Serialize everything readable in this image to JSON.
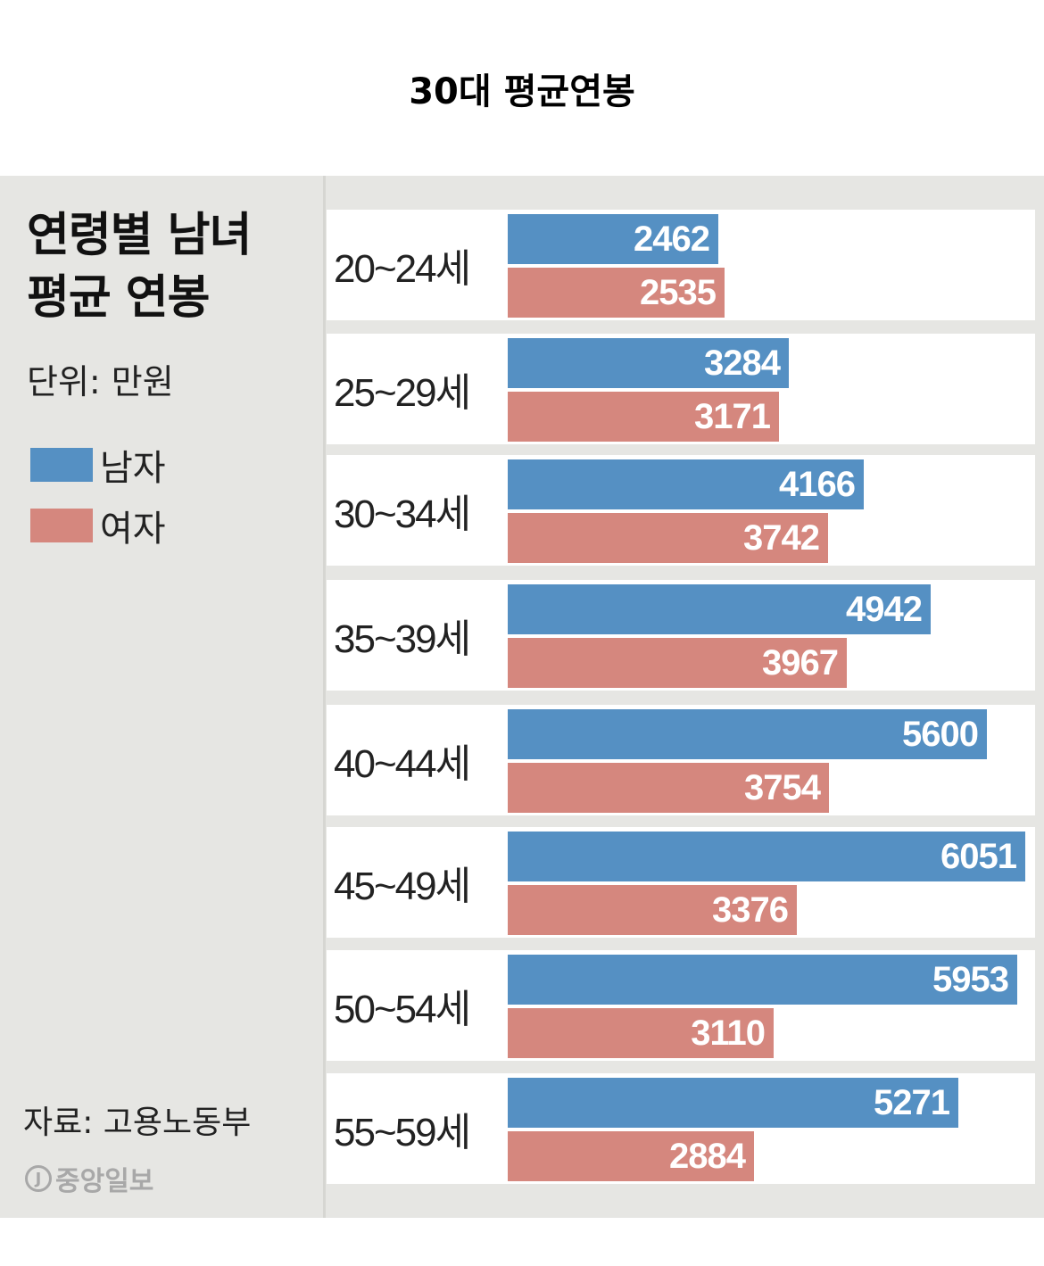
{
  "page": {
    "title": "30대 평균연봉"
  },
  "infographic": {
    "heading_line1": "연령별 남녀",
    "heading_line2": "평균 연봉",
    "unit": "단위: 만원",
    "legend": [
      {
        "label": "남자",
        "color": "#5590c3"
      },
      {
        "label": "여자",
        "color": "#d5877e"
      }
    ],
    "source": "자료: 고용노동부",
    "brand": "중앙일보",
    "brand_mark": "J"
  },
  "chart_data": {
    "type": "bar",
    "orientation": "horizontal",
    "title": "연령별 남녀 평균 연봉",
    "subtitle": "단위: 만원",
    "xlabel": "",
    "ylabel": "",
    "categories": [
      "20~24세",
      "25~29세",
      "30~34세",
      "35~39세",
      "40~44세",
      "45~49세",
      "50~54세",
      "55~59세"
    ],
    "series": [
      {
        "name": "남자",
        "color": "#5590c3",
        "values": [
          2462,
          3284,
          4166,
          4942,
          5600,
          6051,
          5953,
          5271
        ]
      },
      {
        "name": "여자",
        "color": "#d5877e",
        "values": [
          2535,
          3171,
          3742,
          3967,
          3754,
          3376,
          3110,
          2884
        ]
      }
    ],
    "grid": false,
    "legend_position": "left",
    "data_labels": true,
    "source": "자료: 고용노동부"
  }
}
